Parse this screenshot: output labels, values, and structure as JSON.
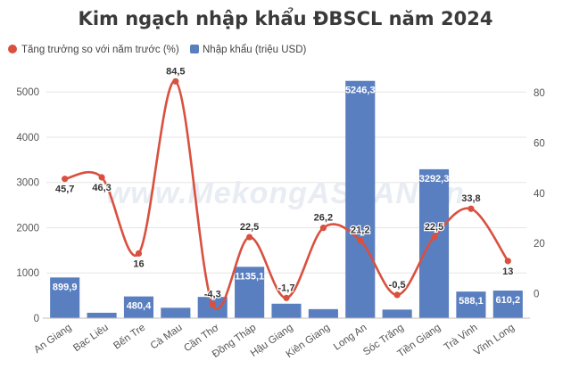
{
  "chart_data": {
    "type": "bar",
    "title": "Kim ngạch nhập khẩu ĐBSCL năm 2024",
    "watermark": "www.MekongASEAN.vn",
    "categories": [
      "An Giang",
      "Bạc Liêu",
      "Bến Tre",
      "Cà Mau",
      "Cần Thơ",
      "Đồng Tháp",
      "Hậu Giang",
      "Kiên Giang",
      "Long An",
      "Sóc Trăng",
      "Tiền Giang",
      "Trà Vinh",
      "Vĩnh Long"
    ],
    "series": [
      {
        "name": "Nhập khẩu (triệu USD)",
        "type": "bar",
        "axis": "left",
        "color": "#5a7fc0",
        "values": [
          899.9,
          120,
          480.4,
          230,
          470,
          1135.1,
          320,
          200,
          5246.3,
          190,
          3292.3,
          588.1,
          610.2
        ],
        "labels": [
          "899,9",
          "",
          "480,4",
          "",
          "",
          "1135,1",
          "",
          "",
          "5246,3",
          "",
          "3292,3",
          "588,1",
          "610,2"
        ]
      },
      {
        "name": "Tăng trưởng so với năm trước (%)",
        "type": "line",
        "axis": "right",
        "color": "#d9503f",
        "values": [
          45.7,
          46.3,
          16,
          84.5,
          -4.3,
          22.5,
          -1.7,
          26.2,
          21.2,
          -0.5,
          22.5,
          33.8,
          13
        ],
        "labels": [
          "45,7",
          "46,3",
          "16",
          "84,5",
          "-4,3",
          "22,5",
          "-1,7",
          "26,2",
          "21,2",
          "-0,5",
          "22,5",
          "33,8",
          "13"
        ]
      }
    ],
    "left_axis": {
      "ylim": [
        0,
        5300
      ],
      "ticks": [
        "0",
        "1000",
        "2000",
        "3000",
        "4000",
        "5000"
      ],
      "tick_values": [
        0,
        1000,
        2000,
        3000,
        4000,
        5000
      ]
    },
    "right_axis": {
      "ylim": [
        -5.5,
        91
      ],
      "ticks": [
        "0",
        "20",
        "40",
        "60",
        "80"
      ],
      "tick_values": [
        0,
        20,
        40,
        60,
        80
      ]
    },
    "legend": "top-left",
    "grid": true
  }
}
